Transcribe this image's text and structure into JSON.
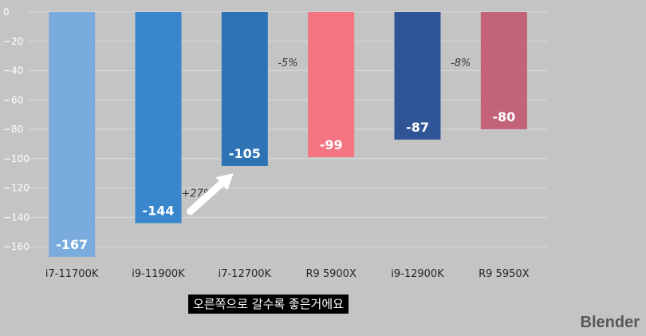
{
  "chart_data": {
    "type": "bar",
    "categories": [
      "i7-11700K",
      "i9-11900K",
      "i7-12700K",
      "R9 5900X",
      "i9-12900K",
      "R9 5950X"
    ],
    "values": [
      -167,
      -144,
      -105,
      -99,
      -87,
      -80
    ],
    "data_labels": [
      "-167",
      "-144",
      "-105",
      "-99",
      "-87",
      "-80"
    ],
    "colors": [
      "#79abdc",
      "#3a86cc",
      "#2e74b5",
      "#f57482",
      "#2f5597",
      "#c2637a"
    ],
    "ylim": [
      -170,
      0
    ],
    "yticks": [
      0,
      -20,
      -40,
      -60,
      -80,
      -100,
      -120,
      -140,
      -160
    ],
    "ytick_labels": [
      "0",
      "−20",
      "−40",
      "−60",
      "−80",
      "−100",
      "−120",
      "−140",
      "−160"
    ],
    "grid": true,
    "title": "",
    "xlabel": "",
    "ylabel": "",
    "annotations": [
      {
        "text": "+27%",
        "near_category": 1
      },
      {
        "text": "-5%",
        "near_category": 2
      },
      {
        "text": "-8%",
        "near_category": 4
      }
    ]
  },
  "caption": "오른쪽으로 갈수록 좋은거에요",
  "watermark": "Blender"
}
